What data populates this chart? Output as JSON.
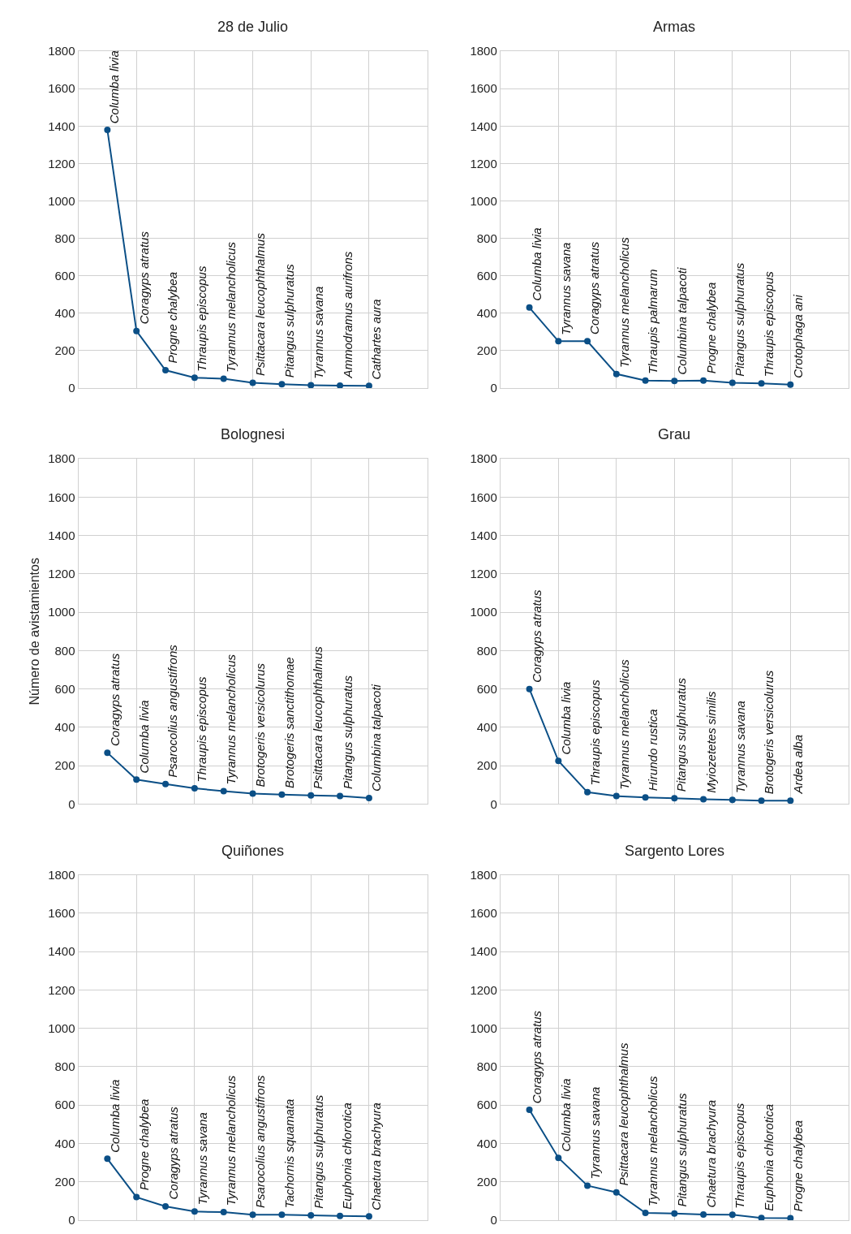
{
  "chart_data": [
    {
      "type": "line",
      "title": "28 de Julio",
      "categories": [
        null,
        null,
        null,
        null,
        null,
        null,
        null,
        null,
        null,
        null
      ],
      "values": [
        1380,
        305,
        95,
        55,
        50,
        28,
        20,
        15,
        13,
        12
      ],
      "value_labels": [
        "Columba livia",
        "Coragyps atratus",
        "Progne chalybea",
        "Thraupis episcopus",
        "Tyrannus melancholicus",
        "Psittacara leucophthalmus",
        "Pitangus sulphuratus",
        "Tyrannus savana",
        "Ammodramus aurifrons",
        "Cathartes aura"
      ],
      "color": "#0b4f86",
      "marker": "circle",
      "ylim": [
        0,
        1800
      ],
      "yticks": [
        0,
        200,
        400,
        600,
        800,
        1000,
        1200,
        1400,
        1600,
        1800
      ],
      "grid": true,
      "tick_labels": "y"
    },
    {
      "type": "line",
      "title": "Armas",
      "categories": [
        null,
        null,
        null,
        null,
        null,
        null,
        null,
        null,
        null,
        null
      ],
      "values": [
        430,
        250,
        250,
        75,
        40,
        38,
        40,
        28,
        25,
        18
      ],
      "value_labels": [
        "Columba livia",
        "Tyrannus savana",
        "Coragyps atratus",
        "Tyrannus melancholicus",
        "Thraupis palmarum",
        "Columbina talpacoti",
        "Progne chalybea",
        "Pitangus sulphuratus",
        "Thraupis episcopus",
        "Crotophaga ani"
      ],
      "color": "#0b4f86",
      "marker": "circle",
      "ylim": [
        0,
        1800
      ],
      "yticks": [
        0,
        200,
        400,
        600,
        800,
        1000,
        1200,
        1400,
        1600,
        1800
      ],
      "grid": true,
      "tick_labels": "y"
    },
    {
      "type": "line",
      "title": "Bolognesi",
      "ylabel": "Número de avistamientos",
      "categories": [
        null,
        null,
        null,
        null,
        null,
        null,
        null,
        null,
        null,
        null
      ],
      "values": [
        268,
        128,
        105,
        82,
        68,
        55,
        50,
        45,
        42,
        32
      ],
      "value_labels": [
        "Coragyps atratus",
        "Columba livia",
        "Psarocolius angustifrons",
        "Thraupis episcopus",
        "Tyrannus melancholicus",
        "Brotogeris versicolurus",
        "Brotogeris sanctithomae",
        "Psittacara leucophthalmus",
        "Pitangus sulphuratus",
        "Columbina talpacoti"
      ],
      "color": "#0b4f86",
      "marker": "circle",
      "ylim": [
        0,
        1800
      ],
      "yticks": [
        0,
        200,
        400,
        600,
        800,
        1000,
        1200,
        1400,
        1600,
        1800
      ],
      "grid": true,
      "tick_labels": "y"
    },
    {
      "type": "line",
      "title": "Grau",
      "categories": [
        null,
        null,
        null,
        null,
        null,
        null,
        null,
        null,
        null,
        null
      ],
      "values": [
        600,
        225,
        62,
        42,
        35,
        30,
        25,
        22,
        18,
        18
      ],
      "value_labels": [
        "Coragyps atratus",
        "Columba livia",
        "Thraupis episcopus",
        "Tyrannus melancholicus",
        "Hirundo rustica",
        "Pitangus sulphuratus",
        "Myiozetetes similis",
        "Tyrannus savana",
        "Brotogeris versicolurus",
        "Ardea alba"
      ],
      "color": "#0b4f86",
      "marker": "circle",
      "ylim": [
        0,
        1800
      ],
      "yticks": [
        0,
        200,
        400,
        600,
        800,
        1000,
        1200,
        1400,
        1600,
        1800
      ],
      "grid": true,
      "tick_labels": "y"
    },
    {
      "type": "line",
      "title": "Quiñones",
      "categories": [
        null,
        null,
        null,
        null,
        null,
        null,
        null,
        null,
        null,
        null
      ],
      "values": [
        320,
        120,
        72,
        45,
        42,
        28,
        28,
        25,
        22,
        20
      ],
      "value_labels": [
        "Columba livia",
        "Progne chalybea",
        "Coragyps atratus",
        "Tyrannus savana",
        "Tyrannus melancholicus",
        "Psarocolius angustifrons",
        "Tachornis squamata",
        "Pitangus sulphuratus",
        "Euphonia chlorotica",
        "Chaetura brachyura"
      ],
      "color": "#0b4f86",
      "marker": "circle",
      "ylim": [
        0,
        1800
      ],
      "yticks": [
        0,
        200,
        400,
        600,
        800,
        1000,
        1200,
        1400,
        1600,
        1800
      ],
      "grid": true,
      "tick_labels": "y"
    },
    {
      "type": "line",
      "title": "Sargento Lores",
      "categories": [
        null,
        null,
        null,
        null,
        null,
        null,
        null,
        null,
        null,
        null
      ],
      "values": [
        575,
        325,
        180,
        145,
        38,
        35,
        30,
        28,
        12,
        10
      ],
      "value_labels": [
        "Coragyps atratus",
        "Columba livia",
        "Tyrannus savana",
        "Psittacara leucophthalmus",
        "Tyrannus melancholicus",
        "Pitangus sulphuratus",
        "Chaetura brachyura",
        "Thraupis episcopus",
        "Euphonia chlorotica",
        "Progne chalybea"
      ],
      "color": "#0b4f86",
      "marker": "circle",
      "ylim": [
        0,
        1800
      ],
      "yticks": [
        0,
        200,
        400,
        600,
        800,
        1000,
        1200,
        1400,
        1600,
        1800
      ],
      "grid": true,
      "tick_labels": "y"
    }
  ]
}
